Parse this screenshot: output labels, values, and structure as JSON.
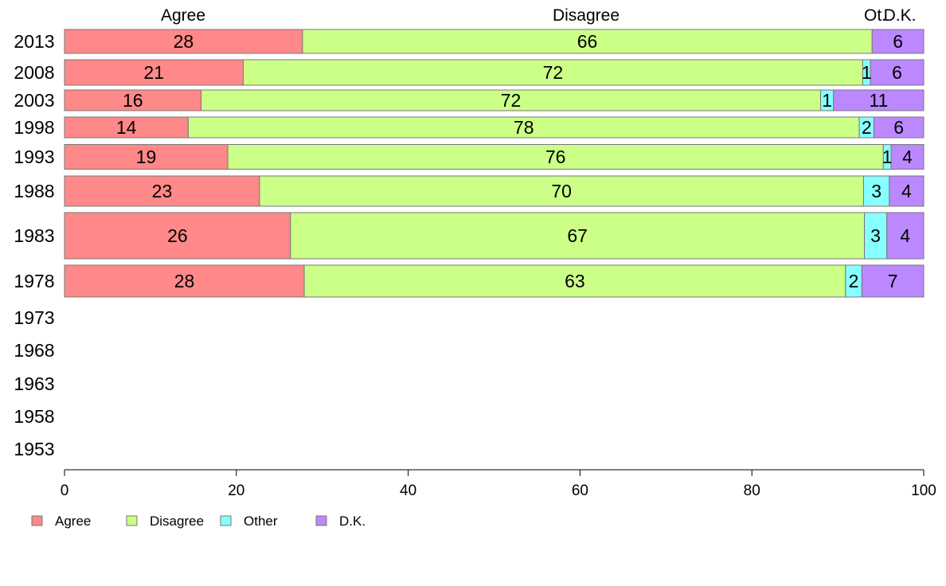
{
  "chart_data": {
    "type": "bar",
    "orientation": "horizontal",
    "stacked": true,
    "categories": [
      "2013",
      "2008",
      "2003",
      "1998",
      "1993",
      "1988",
      "1983",
      "1978",
      "1973",
      "1968",
      "1963",
      "1958",
      "1953"
    ],
    "series": [
      {
        "name": "Agree",
        "color": "#ff8888",
        "values": [
          27.7,
          20.8,
          15.9,
          14.4,
          19.0,
          22.7,
          26.3,
          27.9,
          null,
          null,
          null,
          null,
          null
        ],
        "labels": [
          "28",
          "21",
          "16",
          "14",
          "19",
          "23",
          "26",
          "28",
          "",
          "",
          "",
          "",
          ""
        ]
      },
      {
        "name": "Disagree",
        "color": "#ccff88",
        "values": [
          66.3,
          72.1,
          72.1,
          78.1,
          76.3,
          70.3,
          66.8,
          63.0,
          null,
          null,
          null,
          null,
          null
        ],
        "labels": [
          "66",
          "72",
          "72",
          "78",
          "76",
          "70",
          "67",
          "63",
          "",
          "",
          "",
          "",
          ""
        ]
      },
      {
        "name": "Other",
        "color": "#88ffff",
        "values": [
          0.0,
          0.9,
          1.5,
          1.7,
          0.9,
          3.0,
          2.6,
          1.9,
          null,
          null,
          null,
          null,
          null
        ],
        "labels": [
          "",
          "1",
          "1",
          "2",
          "1",
          "3",
          "3",
          "2",
          "",
          "",
          "",
          "",
          ""
        ]
      },
      {
        "name": "D.K.",
        "color": "#bb88ff",
        "values": [
          6.0,
          6.2,
          10.5,
          5.8,
          3.8,
          4.0,
          4.3,
          7.2,
          null,
          null,
          null,
          null,
          null
        ],
        "labels": [
          "6",
          "6",
          "11",
          "6",
          "4",
          "4",
          "4",
          "7",
          "",
          "",
          "",
          "",
          ""
        ]
      }
    ],
    "bar_weights": [
      30,
      32,
      26,
      26,
      31,
      38,
      58,
      40,
      0,
      0,
      0,
      0,
      0
    ],
    "column_headers": [
      "Agree",
      "Disagree",
      "Ot.",
      "D.K."
    ],
    "xlim": [
      0,
      100
    ],
    "xticks": [
      "0",
      "20",
      "40",
      "60",
      "80",
      "100"
    ],
    "legend_position": "bottom-left",
    "grid": false
  }
}
